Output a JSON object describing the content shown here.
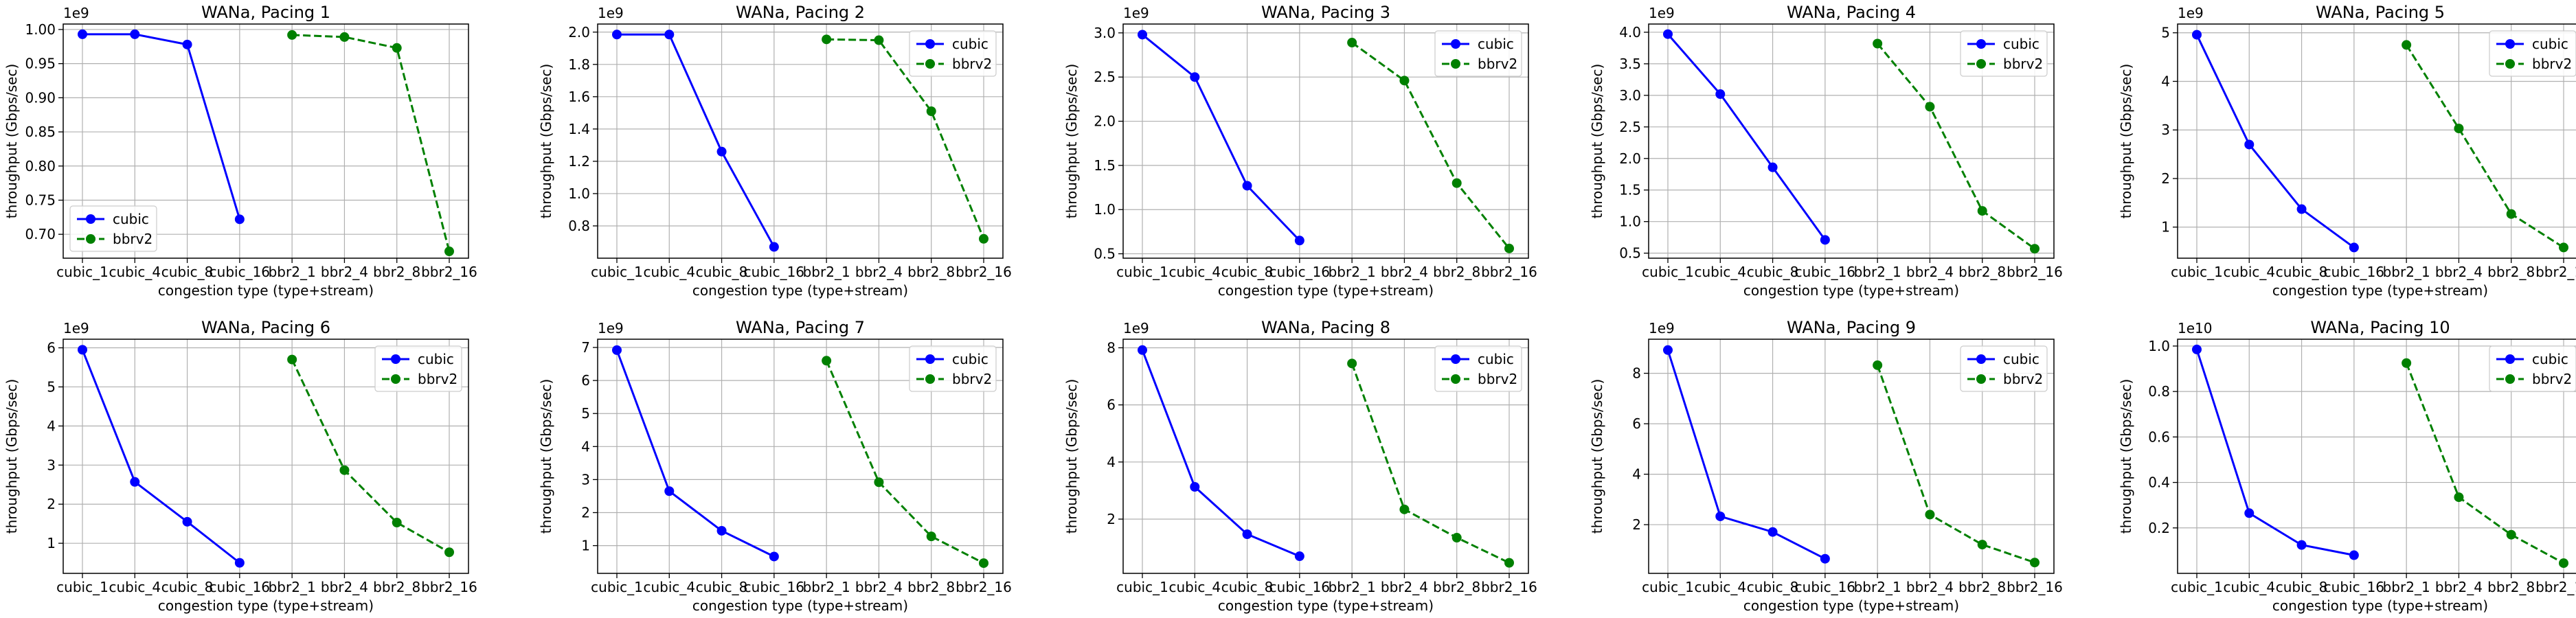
{
  "figure": {
    "x_label": "congestion type (type+stream)",
    "y_label": "throughput (Gbps/sec)"
  },
  "colors": {
    "cubic": "#0000ff",
    "bbrv2": "#008000",
    "grid": "#b0b0b0"
  },
  "chart_data": [
    {
      "type": "line",
      "title": "WANa, Pacing 1",
      "offset_label": "1e9",
      "multiplier": 1000000000.0,
      "categories": [
        "cubic_1",
        "cubic_4",
        "cubic_8",
        "cubic_16",
        "bbr2_1",
        "bbr2_4",
        "bbr2_8",
        "bbr2_16"
      ],
      "series": [
        {
          "name": "cubic",
          "x": [
            0,
            1,
            2,
            3
          ],
          "values": [
            0.993,
            0.993,
            0.978,
            0.722
          ]
        },
        {
          "name": "bbrv2",
          "x": [
            4,
            5,
            6,
            7
          ],
          "values": [
            0.992,
            0.989,
            0.973,
            0.675
          ]
        }
      ],
      "ylim": [
        0.665,
        1.008
      ],
      "yticks": [
        0.7,
        0.75,
        0.8,
        0.85,
        0.9,
        0.95,
        1.0
      ],
      "ytick_labels": [
        "0.70",
        "0.75",
        "0.80",
        "0.85",
        "0.90",
        "0.95",
        "1.00"
      ],
      "legend_loc": "lower-left"
    },
    {
      "type": "line",
      "title": "WANa, Pacing 2",
      "offset_label": "1e9",
      "multiplier": 1000000000.0,
      "categories": [
        "cubic_1",
        "cubic_4",
        "cubic_8",
        "cubic_16",
        "bbr2_1",
        "bbr2_4",
        "bbr2_8",
        "bbr2_16"
      ],
      "series": [
        {
          "name": "cubic",
          "x": [
            0,
            1,
            2,
            3
          ],
          "values": [
            1.985,
            1.985,
            1.26,
            0.67
          ]
        },
        {
          "name": "bbrv2",
          "x": [
            4,
            5,
            6,
            7
          ],
          "values": [
            1.955,
            1.95,
            1.51,
            0.72
          ]
        }
      ],
      "ylim": [
        0.6,
        2.05
      ],
      "yticks": [
        0.8,
        1.0,
        1.2,
        1.4,
        1.6,
        1.8,
        2.0
      ],
      "ytick_labels": [
        "0.8",
        "1.0",
        "1.2",
        "1.4",
        "1.6",
        "1.8",
        "2.0"
      ],
      "legend_loc": "upper-right"
    },
    {
      "type": "line",
      "title": "WANa, Pacing 3",
      "offset_label": "1e9",
      "multiplier": 1000000000.0,
      "categories": [
        "cubic_1",
        "cubic_4",
        "cubic_8",
        "cubic_16",
        "bbr2_1",
        "bbr2_4",
        "bbr2_8",
        "bbr2_16"
      ],
      "series": [
        {
          "name": "cubic",
          "x": [
            0,
            1,
            2,
            3
          ],
          "values": [
            2.98,
            2.5,
            1.27,
            0.65
          ]
        },
        {
          "name": "bbrv2",
          "x": [
            4,
            5,
            6,
            7
          ],
          "values": [
            2.89,
            2.46,
            1.3,
            0.56
          ]
        }
      ],
      "ylim": [
        0.45,
        3.1
      ],
      "yticks": [
        0.5,
        1.0,
        1.5,
        2.0,
        2.5,
        3.0
      ],
      "ytick_labels": [
        "0.5",
        "1.0",
        "1.5",
        "2.0",
        "2.5",
        "3.0"
      ],
      "legend_loc": "upper-right"
    },
    {
      "type": "line",
      "title": "WANa, Pacing 4",
      "offset_label": "1e9",
      "multiplier": 1000000000.0,
      "categories": [
        "cubic_1",
        "cubic_4",
        "cubic_8",
        "cubic_16",
        "bbr2_1",
        "bbr2_4",
        "bbr2_8",
        "bbr2_16"
      ],
      "series": [
        {
          "name": "cubic",
          "x": [
            0,
            1,
            2,
            3
          ],
          "values": [
            3.97,
            3.02,
            1.86,
            0.71
          ]
        },
        {
          "name": "bbrv2",
          "x": [
            4,
            5,
            6,
            7
          ],
          "values": [
            3.82,
            2.82,
            1.17,
            0.57
          ]
        }
      ],
      "ylim": [
        0.42,
        4.13
      ],
      "yticks": [
        0.5,
        1.0,
        1.5,
        2.0,
        2.5,
        3.0,
        3.5,
        4.0
      ],
      "ytick_labels": [
        "0.5",
        "1.0",
        "1.5",
        "2.0",
        "2.5",
        "3.0",
        "3.5",
        "4.0"
      ],
      "legend_loc": "upper-right"
    },
    {
      "type": "line",
      "title": "WANa, Pacing 5",
      "offset_label": "1e9",
      "multiplier": 1000000000.0,
      "categories": [
        "cubic_1",
        "cubic_4",
        "cubic_8",
        "cubic_16",
        "bbr2_1",
        "bbr2_4",
        "bbr2_8",
        "bbr2_16"
      ],
      "series": [
        {
          "name": "cubic",
          "x": [
            0,
            1,
            2,
            3
          ],
          "values": [
            4.96,
            2.7,
            1.37,
            0.58
          ]
        },
        {
          "name": "bbrv2",
          "x": [
            4,
            5,
            6,
            7
          ],
          "values": [
            4.75,
            3.03,
            1.27,
            0.58
          ]
        }
      ],
      "ylim": [
        0.36,
        5.18
      ],
      "yticks": [
        1,
        2,
        3,
        4,
        5
      ],
      "ytick_labels": [
        "1",
        "2",
        "3",
        "4",
        "5"
      ],
      "legend_loc": "upper-right"
    },
    {
      "type": "line",
      "title": "WANa, Pacing 6",
      "offset_label": "1e9",
      "multiplier": 1000000000.0,
      "categories": [
        "cubic_1",
        "cubic_4",
        "cubic_8",
        "cubic_16",
        "bbr2_1",
        "bbr2_4",
        "bbr2_8",
        "bbr2_16"
      ],
      "series": [
        {
          "name": "cubic",
          "x": [
            0,
            1,
            2,
            3
          ],
          "values": [
            5.95,
            2.57,
            1.55,
            0.5
          ]
        },
        {
          "name": "bbrv2",
          "x": [
            4,
            5,
            6,
            7
          ],
          "values": [
            5.7,
            2.87,
            1.53,
            0.77
          ]
        }
      ],
      "ylim": [
        0.23,
        6.22
      ],
      "yticks": [
        1,
        2,
        3,
        4,
        5,
        6
      ],
      "ytick_labels": [
        "1",
        "2",
        "3",
        "4",
        "5",
        "6"
      ],
      "legend_loc": "upper-right"
    },
    {
      "type": "line",
      "title": "WANa, Pacing 7",
      "offset_label": "1e9",
      "multiplier": 1000000000.0,
      "categories": [
        "cubic_1",
        "cubic_4",
        "cubic_8",
        "cubic_16",
        "bbr2_1",
        "bbr2_4",
        "bbr2_8",
        "bbr2_16"
      ],
      "series": [
        {
          "name": "cubic",
          "x": [
            0,
            1,
            2,
            3
          ],
          "values": [
            6.92,
            2.65,
            1.45,
            0.67
          ]
        },
        {
          "name": "bbrv2",
          "x": [
            4,
            5,
            6,
            7
          ],
          "values": [
            6.6,
            2.92,
            1.28,
            0.47
          ]
        }
      ],
      "ylim": [
        0.16,
        7.25
      ],
      "yticks": [
        1,
        2,
        3,
        4,
        5,
        6,
        7
      ],
      "ytick_labels": [
        "1",
        "2",
        "3",
        "4",
        "5",
        "6",
        "7"
      ],
      "legend_loc": "upper-right"
    },
    {
      "type": "line",
      "title": "WANa, Pacing 8",
      "offset_label": "1e9",
      "multiplier": 1000000000.0,
      "categories": [
        "cubic_1",
        "cubic_4",
        "cubic_8",
        "cubic_16",
        "bbr2_1",
        "bbr2_4",
        "bbr2_8",
        "bbr2_16"
      ],
      "series": [
        {
          "name": "cubic",
          "x": [
            0,
            1,
            2,
            3
          ],
          "values": [
            7.92,
            3.13,
            1.47,
            0.7
          ]
        },
        {
          "name": "bbrv2",
          "x": [
            4,
            5,
            6,
            7
          ],
          "values": [
            7.45,
            2.34,
            1.35,
            0.47
          ]
        }
      ],
      "ylim": [
        0.1,
        8.3
      ],
      "yticks": [
        2,
        4,
        6,
        8
      ],
      "ytick_labels": [
        "2",
        "4",
        "6",
        "8"
      ],
      "legend_loc": "upper-right"
    },
    {
      "type": "line",
      "title": "WANa, Pacing 9",
      "offset_label": "1e9",
      "multiplier": 1000000000.0,
      "categories": [
        "cubic_1",
        "cubic_4",
        "cubic_8",
        "cubic_16",
        "bbr2_1",
        "bbr2_4",
        "bbr2_8",
        "bbr2_16"
      ],
      "series": [
        {
          "name": "cubic",
          "x": [
            0,
            1,
            2,
            3
          ],
          "values": [
            8.92,
            2.33,
            1.71,
            0.65
          ]
        },
        {
          "name": "bbrv2",
          "x": [
            4,
            5,
            6,
            7
          ],
          "values": [
            8.32,
            2.4,
            1.21,
            0.5
          ]
        }
      ],
      "ylim": [
        0.07,
        9.35
      ],
      "yticks": [
        2,
        4,
        6,
        8
      ],
      "ytick_labels": [
        "2",
        "4",
        "6",
        "8"
      ],
      "legend_loc": "upper-right"
    },
    {
      "type": "line",
      "title": "WANa, Pacing 10",
      "offset_label": "1e10",
      "multiplier": 10000000000.0,
      "categories": [
        "cubic_1",
        "cubic_4",
        "cubic_8",
        "cubic_16",
        "bbr2_1",
        "bbr2_4",
        "bbr2_8",
        "bbr2_16"
      ],
      "series": [
        {
          "name": "cubic",
          "x": [
            0,
            1,
            2,
            3
          ],
          "values": [
            0.985,
            0.265,
            0.125,
            0.08
          ]
        },
        {
          "name": "bbrv2",
          "x": [
            4,
            5,
            6,
            7
          ],
          "values": [
            0.925,
            0.335,
            0.17,
            0.045
          ]
        }
      ],
      "ylim": [
        0.0,
        1.03
      ],
      "yticks": [
        0.2,
        0.4,
        0.6,
        0.8,
        1.0
      ],
      "ytick_labels": [
        "0.2",
        "0.4",
        "0.6",
        "0.8",
        "1.0"
      ],
      "legend_loc": "upper-right"
    }
  ]
}
